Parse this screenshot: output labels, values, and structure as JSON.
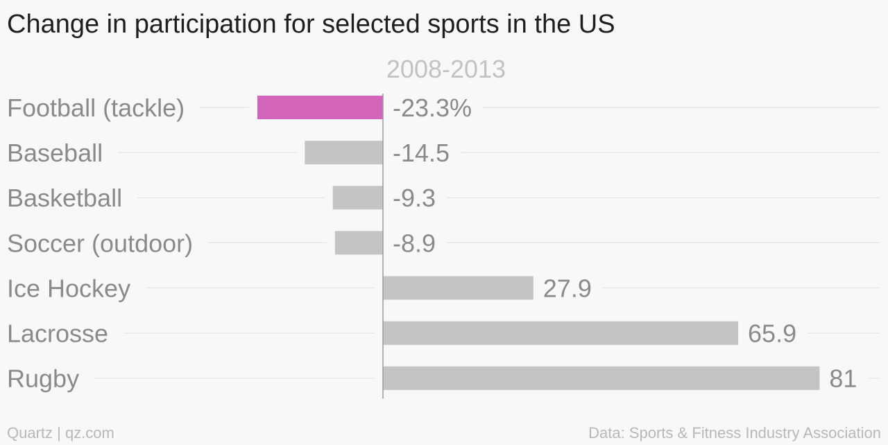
{
  "title": "Change in participation for selected sports in the US",
  "footer": {
    "credit": "Quartz | qz.com",
    "source": "Data: Sports & Fitness Industry Association"
  },
  "colors": {
    "highlight": "#d264b9",
    "bar": "#c4c4c4",
    "label": "#8a8a8a",
    "gridline": "#e6e6e6",
    "axis": "#999999",
    "column_header": "#c2c2c2"
  },
  "chart_data": {
    "type": "bar",
    "orientation": "horizontal",
    "column_header": "2008-2013",
    "categories": [
      "Football (tackle)",
      "Baseball",
      "Basketball",
      "Soccer (outdoor)",
      "Ice Hockey",
      "Lacrosse",
      "Rugby"
    ],
    "values": [
      -23.3,
      -14.5,
      -9.3,
      -8.9,
      27.9,
      65.9,
      81
    ],
    "value_labels": [
      "-23.3%",
      "-14.5",
      "-9.3",
      "-8.9",
      "27.9",
      "65.9",
      "81"
    ],
    "highlighted": [
      "Football (tackle)"
    ],
    "unit": "%"
  }
}
